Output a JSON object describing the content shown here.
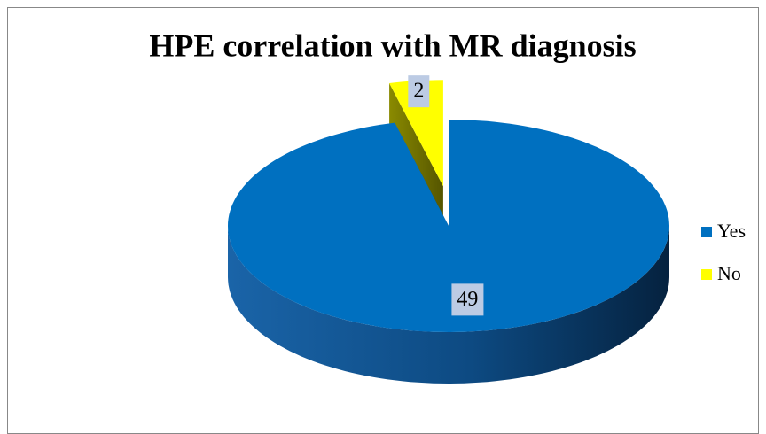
{
  "chart_data": {
    "type": "pie3d",
    "title": "HPE correlation with MR diagnosis",
    "categories": [
      "Yes",
      "No"
    ],
    "values": [
      49,
      2
    ],
    "colors": [
      "#0070c0",
      "#ffff00"
    ],
    "legend": "right"
  }
}
